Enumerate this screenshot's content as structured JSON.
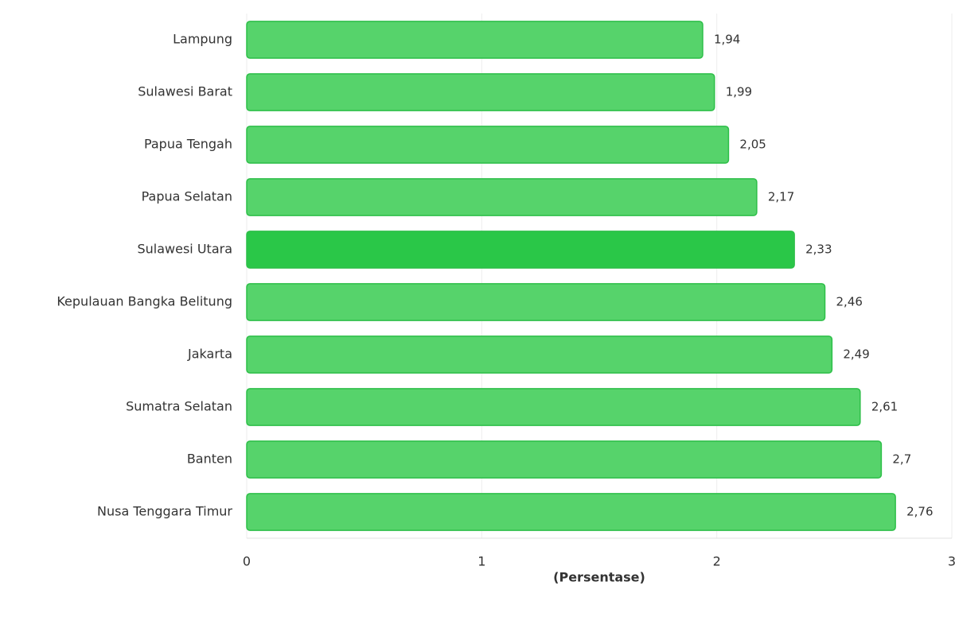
{
  "chart_data": {
    "type": "bar",
    "orientation": "horizontal",
    "categories": [
      "Lampung",
      "Sulawesi Barat",
      "Papua Tengah",
      "Papua Selatan",
      "Sulawesi Utara",
      "Kepulauan Bangka Belitung",
      "Jakarta",
      "Sumatra Selatan",
      "Banten",
      "Nusa Tenggara Timur"
    ],
    "values": [
      1.94,
      1.99,
      2.05,
      2.17,
      2.33,
      2.46,
      2.49,
      2.61,
      2.7,
      2.76
    ],
    "value_labels": [
      "1,94",
      "1,99",
      "2,05",
      "2,17",
      "2,33",
      "2,46",
      "2,49",
      "2,61",
      "2,7",
      "2,76"
    ],
    "colors": [
      "#56d36b",
      "#56d36b",
      "#56d36b",
      "#56d36b",
      "#2ac748",
      "#56d36b",
      "#56d36b",
      "#56d36b",
      "#56d36b",
      "#56d36b"
    ],
    "x_label": "(Persentase)",
    "xlim": [
      0,
      3
    ],
    "xticks": [
      0,
      1,
      2,
      3
    ],
    "grid": true
  }
}
